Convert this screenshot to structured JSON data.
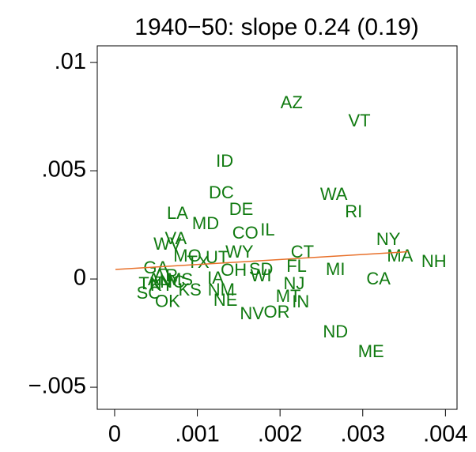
{
  "chart_data": {
    "type": "scatter",
    "title": "1940−50: slope 0.24 (0.19)",
    "labels": [
      "AZ",
      "VT",
      "ID",
      "DC",
      "WA",
      "DE",
      "RI",
      "LA",
      "MD",
      "CO",
      "IL",
      "NY",
      "VA",
      "WV",
      "MA",
      "NH",
      "CT",
      "WY",
      "MO",
      "UT",
      "TX",
      "OH",
      "SD",
      "WI",
      "MI",
      "FL",
      "CA",
      "NJ",
      "IA",
      "GA",
      "AR",
      "AL",
      "MS",
      "TN",
      "SC",
      "KY",
      "NC",
      "OK",
      "KS",
      "NM",
      "NE",
      "NV",
      "OR",
      "MT",
      "IN",
      "ND",
      "ME"
    ],
    "x": [
      0.00214,
      0.00296,
      0.00133,
      0.00129,
      0.00265,
      0.00153,
      0.00289,
      0.00076,
      0.0011,
      0.00158,
      0.00185,
      0.00331,
      0.00074,
      0.00064,
      0.00345,
      0.00386,
      0.00227,
      0.00151,
      0.00088,
      0.00124,
      0.00101,
      0.00144,
      0.00177,
      0.00177,
      0.00267,
      0.0022,
      0.00319,
      0.00217,
      0.00122,
      0.0005,
      0.00062,
      0.00053,
      0.00079,
      0.00043,
      0.00041,
      0.00057,
      0.0007,
      0.00064,
      0.00091,
      0.00129,
      0.00134,
      0.00166,
      0.00196,
      0.0021,
      0.00225,
      0.00267,
      0.0031
    ],
    "y": [
      0.0081,
      0.00726,
      0.0054,
      0.00394,
      0.00387,
      0.00318,
      0.00307,
      0.00299,
      0.00252,
      0.00208,
      0.00223,
      0.00179,
      0.00182,
      0.00157,
      0.00102,
      0.00077,
      0.0012,
      0.0012,
      0.00102,
      0.00095,
      0.00073,
      0.00036,
      0.0004,
      0.00011,
      0.0004,
      0.00055,
      -4e-05,
      -0.00026,
      0,
      0.00047,
      0.00011,
      -7e-05,
      -7e-05,
      -0.00026,
      -0.00069,
      -0.00033,
      -0.00018,
      -0.00109,
      -0.00055,
      -0.00055,
      -0.00102,
      -0.00164,
      -0.00157,
      -0.00084,
      -0.0011,
      -0.00248,
      -0.00339
    ],
    "color": "#107a10",
    "fit": {
      "x": [
        1e-05,
        0.00355
      ],
      "y": [
        0.00044,
        0.00126
      ],
      "color": "#e8702a"
    },
    "xlim": [
      -0.00021,
      0.00414
    ],
    "ylim": [
      -0.00602,
      0.01077
    ],
    "xticks": [
      {
        "value": 0,
        "label": "0"
      },
      {
        "value": 0.001,
        "label": ".001"
      },
      {
        "value": 0.002,
        "label": ".002"
      },
      {
        "value": 0.003,
        "label": ".003"
      },
      {
        "value": 0.004,
        "label": ".004"
      }
    ],
    "yticks": [
      {
        "value": -0.005,
        "label": "−.005"
      },
      {
        "value": 0,
        "label": "0"
      },
      {
        "value": 0.005,
        "label": ".005"
      },
      {
        "value": 0.01,
        "label": ".01"
      }
    ]
  }
}
